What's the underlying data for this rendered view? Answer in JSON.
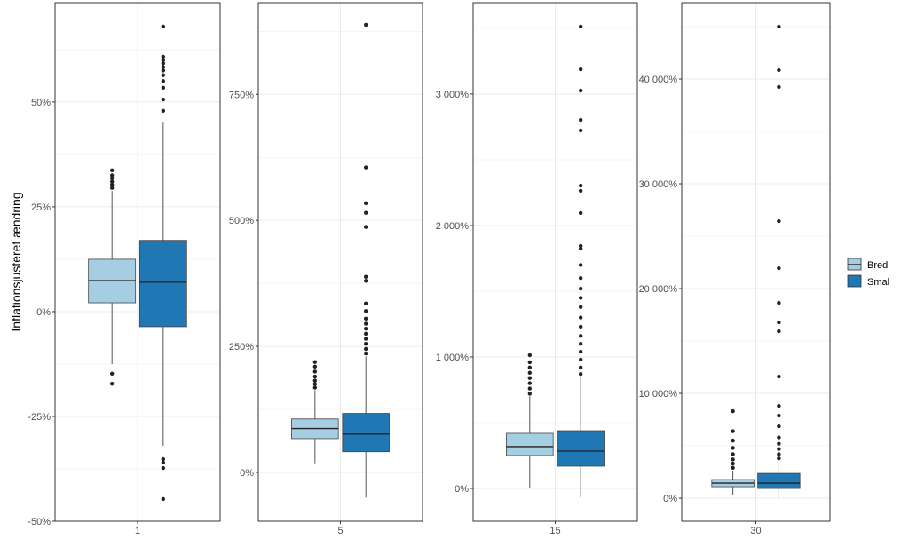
{
  "chart_data": {
    "type": "boxplot",
    "ylabel": "Inflationsjusteret ændring",
    "legend": {
      "placement": "right",
      "entries": [
        {
          "name": "Bred",
          "color": "#a6cee3"
        },
        {
          "name": "Smal",
          "color": "#1f78b4"
        }
      ]
    },
    "grid": true,
    "facets": [
      {
        "x_label": "1",
        "ylim": [
          -50,
          73.7
        ],
        "yticks": [
          {
            "v": -50,
            "label": "-50%"
          },
          {
            "v": -25,
            "label": "-25%"
          },
          {
            "v": 0,
            "label": "0%"
          },
          {
            "v": 25,
            "label": "25%"
          },
          {
            "v": 50,
            "label": "50%"
          }
        ],
        "series": [
          {
            "name": "Bred",
            "whisker_low": -12.5,
            "q1": 2.1,
            "median": 7.4,
            "q3": 12.5,
            "whisker_high": 28.8,
            "outliers": [
              29.5,
              30.3,
              31,
              31.8,
              32.5,
              33.7,
              -14.8,
              -17.2
            ]
          },
          {
            "name": "Smal",
            "whisker_low": -32,
            "q1": -3.6,
            "median": 7,
            "q3": 17,
            "whisker_high": 45.3,
            "outliers": [
              47.9,
              50.6,
              53.4,
              55,
              56.4,
              57.5,
              58.3,
              59.2,
              60,
              60.8,
              68,
              -35.2,
              -36,
              -37.3,
              -44.7
            ]
          }
        ]
      },
      {
        "x_label": "5",
        "ylim": [
          -97,
          932
        ],
        "yticks": [
          {
            "v": 0,
            "label": "0%"
          },
          {
            "v": 250,
            "label": "250%"
          },
          {
            "v": 500,
            "label": "500%"
          },
          {
            "v": 750,
            "label": "750%"
          }
        ],
        "series": [
          {
            "name": "Bred",
            "whisker_low": 18,
            "q1": 67,
            "median": 87,
            "q3": 106,
            "whisker_high": 163,
            "outliers": [
              168,
              175,
              182,
              190,
              200,
              210,
              219
            ]
          },
          {
            "name": "Smal",
            "whisker_low": -50,
            "q1": 41,
            "median": 76,
            "q3": 117,
            "whisker_high": 230,
            "outliers": [
              236,
              245,
              255,
              265,
              275,
              285,
              295,
              305,
              320,
              335,
              380,
              388,
              487,
              515,
              534,
              605,
              888
            ]
          }
        ]
      },
      {
        "x_label": "15",
        "ylim": [
          -250,
          3696
        ],
        "yticks": [
          {
            "v": 0,
            "label": "0%"
          },
          {
            "v": 1000,
            "label": "1 000%"
          },
          {
            "v": 2000,
            "label": "2 000%"
          },
          {
            "v": 3000,
            "label": "3 000%"
          }
        ],
        "series": [
          {
            "name": "Bred",
            "whisker_low": 0,
            "q1": 250,
            "median": 318,
            "q3": 419,
            "whisker_high": 700,
            "outliers": [
              720,
              760,
              800,
              840,
              880,
              920,
              960,
              1014
            ]
          },
          {
            "name": "Smal",
            "whisker_low": -68,
            "q1": 169,
            "median": 284,
            "q3": 439,
            "whisker_high": 845,
            "outliers": [
              870,
              920,
              980,
              1040,
              1100,
              1160,
              1230,
              1300,
              1380,
              1450,
              1520,
              1600,
              1700,
              1824,
              1845,
              2095,
              2264,
              2304,
              2723,
              2804,
              3027,
              3189,
              3514
            ]
          }
        ]
      },
      {
        "x_label": "30",
        "ylim": [
          -2200,
          47290
        ],
        "yticks": [
          {
            "v": 0,
            "label": "0%"
          },
          {
            "v": 10000,
            "label": "10 000%"
          },
          {
            "v": 20000,
            "label": "20 000%"
          },
          {
            "v": 30000,
            "label": "30 000%"
          },
          {
            "v": 40000,
            "label": "40 000%"
          }
        ],
        "series": [
          {
            "name": "Bred",
            "whisker_low": 340,
            "q1": 1100,
            "median": 1440,
            "q3": 1780,
            "whisker_high": 2630,
            "outliers": [
              2900,
              3300,
              3700,
              4200,
              4800,
              5500,
              6400,
              8300
            ]
          },
          {
            "name": "Smal",
            "whisker_low": 0,
            "q1": 930,
            "median": 1440,
            "q3": 2370,
            "whisker_high": 3470,
            "outliers": [
              3800,
              4200,
              4700,
              5200,
              5800,
              6860,
              7880,
              8810,
              11610,
              15930,
              16780,
              18640,
              21950,
              26440,
              39240,
              40850,
              45000
            ]
          }
        ]
      }
    ]
  }
}
